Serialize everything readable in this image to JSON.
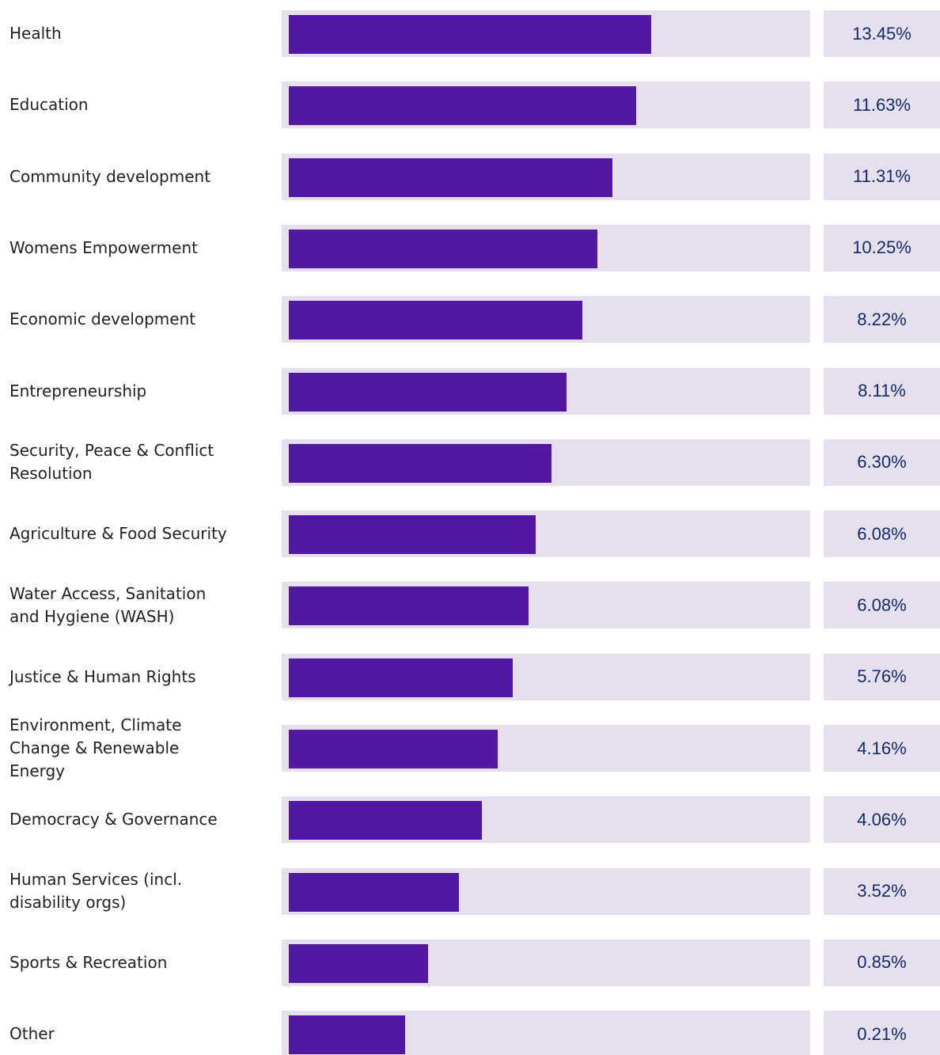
{
  "rows": [
    {
      "label": [
        "Health"
      ],
      "value": "13.45%",
      "bar": 69.9
    },
    {
      "label": [
        "Education"
      ],
      "value": "11.63%",
      "bar": 67.1
    },
    {
      "label": [
        "Community development"
      ],
      "value": "11.31%",
      "bar": 62.6
    },
    {
      "label": [
        "Womens Empowerment"
      ],
      "value": "10.25%",
      "bar": 59.7
    },
    {
      "label": [
        "Economic development"
      ],
      "value": "8.22%",
      "bar": 56.9
    },
    {
      "label": [
        "Entrepreneurship"
      ],
      "value": "8.11%",
      "bar": 53.9
    },
    {
      "label": [
        "Security, Peace & Conflict",
        "Resolution"
      ],
      "value": "6.30%",
      "bar": 51.0
    },
    {
      "label": [
        "Agriculture & Food Security"
      ],
      "value": "6.08%",
      "bar": 48.0
    },
    {
      "label": [
        "Water Access, Sanitation",
        "and Hygiene (WASH)"
      ],
      "value": "6.08%",
      "bar": 46.7
    },
    {
      "label": [
        "Justice & Human Rights"
      ],
      "value": "5.76%",
      "bar": 43.7
    },
    {
      "label": [
        "Environment, Climate",
        "Change & Renewable",
        "Energy"
      ],
      "value": "4.16%",
      "bar": 40.9
    },
    {
      "label": [
        "Democracy & Governance"
      ],
      "value": "4.06%",
      "bar": 37.9
    },
    {
      "label": [
        "Human Services (incl.",
        "disability orgs)"
      ],
      "value": "3.52%",
      "bar": 33.5
    },
    {
      "label": [
        "Sports & Recreation"
      ],
      "value": "0.85%",
      "bar": 27.7
    },
    {
      "label": [
        "Other"
      ],
      "value": "0.21%",
      "bar": 23.4
    }
  ]
}
